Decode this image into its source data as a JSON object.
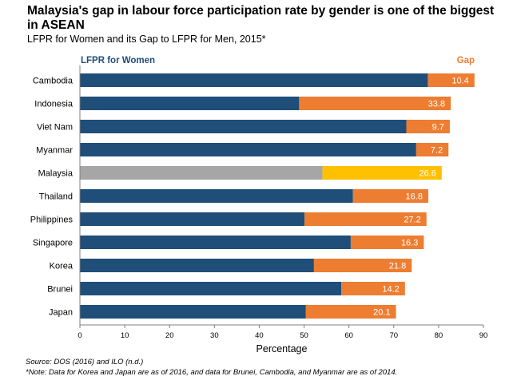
{
  "chart_data": {
    "type": "bar",
    "orientation": "horizontal",
    "stacked": true,
    "title": "Malaysia's gap in labour force participation rate by gender is one of the biggest in ASEAN",
    "subtitle": "LFPR for Women and its Gap to LFPR for Men, 2015*",
    "xlabel": "Percentage",
    "ylabel": "",
    "xlim": [
      0,
      90
    ],
    "xticks": [
      "0",
      "10",
      "20",
      "30",
      "40",
      "50",
      "60",
      "70",
      "80",
      "90"
    ],
    "categories": [
      "Cambodia",
      "Indonesia",
      "Viet Nam",
      "Myanmar",
      "Malaysia",
      "Thailand",
      "Philippines",
      "Singapore",
      "Korea",
      "Brunei",
      "Japan"
    ],
    "highlight": "Malaysia",
    "series": [
      {
        "name": "LFPR for Women",
        "color": "#1f4e79",
        "highlight_color": "#a6a6a6",
        "values": [
          77.6,
          48.9,
          72.8,
          75.0,
          54.1,
          60.9,
          50.1,
          60.4,
          52.2,
          58.3,
          50.4
        ]
      },
      {
        "name": "Gap",
        "color": "#ed7d31",
        "highlight_color": "#ffc000",
        "values": [
          10.4,
          33.8,
          9.7,
          7.2,
          26.6,
          16.8,
          27.2,
          16.3,
          21.8,
          14.2,
          20.1
        ],
        "labels": [
          "10.4",
          "33.8",
          "9.7",
          "7.2",
          "26.6",
          "16.8",
          "27.2",
          "16.3",
          "21.8",
          "14.2",
          "20.1"
        ]
      }
    ],
    "legend": [
      "LFPR for Women",
      "Gap"
    ]
  },
  "footer": {
    "source": "Source: DOS (2016) and ILO (n.d.)",
    "note": "*Note: Data for Korea and Japan are as of 2016, and data for Brunei, Cambodia, and Myanmar are as of 2014."
  }
}
